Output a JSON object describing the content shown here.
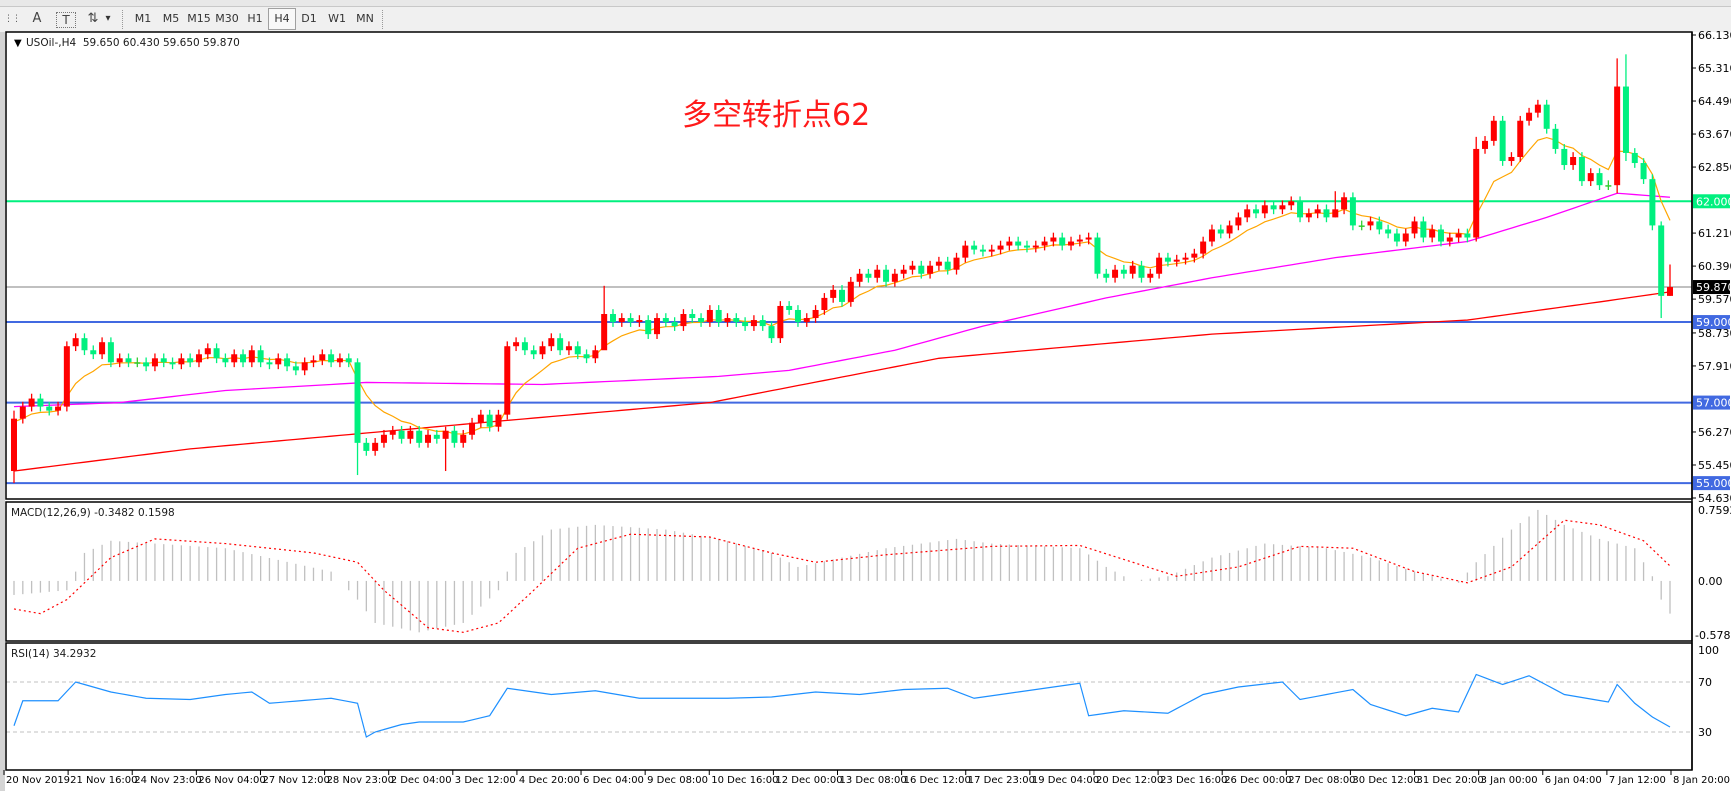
{
  "toolbar": {
    "tools": [
      {
        "name": "grid-period-separator-icon",
        "glyph": "⋮⋮"
      },
      {
        "name": "text-label-icon",
        "glyph": "A"
      },
      {
        "name": "text-box-icon",
        "glyph": "T"
      },
      {
        "name": "arrows-icon",
        "glyph": "⇅"
      }
    ],
    "dropdown_glyph": "▾",
    "timeframes": [
      "M1",
      "M5",
      "M15",
      "M30",
      "H1",
      "H4",
      "D1",
      "W1",
      "MN"
    ],
    "active_timeframe": "H4"
  },
  "chart": {
    "symbol_info": "USOil-,H4  59.650 60.430 59.650 59.870",
    "annotation": "多空转折点62",
    "colors": {
      "bull": "#ff0000",
      "bear": "#00f07f",
      "ma_fast": "#ffa500",
      "ma_mid": "#ff00ff",
      "ma_slow": "#ff0000",
      "support": "#4169e1",
      "resistance": "#00f07f"
    }
  },
  "price_axis": {
    "ticks": [
      "66.130",
      "65.310",
      "64.490",
      "63.670",
      "62.850",
      "61.210",
      "60.390",
      "59.570",
      "58.730",
      "57.910",
      "56.270",
      "55.450",
      "54.630"
    ]
  },
  "hlines": [
    {
      "price": 62.0,
      "label": "62.000",
      "color": "#00f07f"
    },
    {
      "price": 59.0,
      "label": "59.000",
      "color": "#4169e1"
    },
    {
      "price": 57.0,
      "label": "57.000",
      "color": "#4169e1"
    },
    {
      "price": 55.0,
      "label": "55.000",
      "color": "#4169e1"
    }
  ],
  "current_price": {
    "value": 59.87,
    "label": "59.870"
  },
  "macd": {
    "label": "MACD(12,26,9) -0.3482 0.1598",
    "ticks": [
      "0.7592",
      "0.00",
      "-0.5785"
    ]
  },
  "rsi": {
    "label": "RSI(14) 34.2932",
    "ticks": [
      "100",
      "70",
      "30"
    ],
    "levels": [
      70,
      30
    ]
  },
  "x_axis": {
    "labels": [
      "20 Nov 2019",
      "21 Nov 16:00",
      "24 Nov 23:00",
      "26 Nov 04:00",
      "27 Nov 12:00",
      "28 Nov 23:00",
      "2 Dec 04:00",
      "3 Dec 12:00",
      "4 Dec 20:00",
      "6 Dec 04:00",
      "9 Dec 08:00",
      "10 Dec 16:00",
      "12 Dec 00:00",
      "13 Dec 08:00",
      "16 Dec 12:00",
      "17 Dec 23:00",
      "19 Dec 04:00",
      "20 Dec 12:00",
      "23 Dec 16:00",
      "26 Dec 00:00",
      "27 Dec 08:00",
      "30 Dec 12:00",
      "31 Dec 20:00",
      "3 Jan 00:00",
      "6 Jan 04:00",
      "7 Jan 12:00",
      "8 Jan 20:00"
    ]
  },
  "chart_data": {
    "type": "candlestick",
    "symbol": "USOil-",
    "timeframe": "H4",
    "ylim": [
      54.63,
      66.13
    ],
    "first_open": 55.3,
    "closes": [
      56.6,
      56.9,
      57.1,
      56.9,
      56.8,
      56.9,
      58.4,
      58.6,
      58.3,
      58.2,
      58.5,
      58.0,
      58.1,
      58.0,
      58.0,
      57.9,
      58.1,
      58.0,
      57.95,
      58.1,
      58.0,
      58.2,
      58.35,
      58.1,
      58.0,
      58.2,
      58.0,
      58.3,
      58.0,
      57.95,
      58.1,
      57.9,
      57.8,
      58.0,
      58.05,
      58.2,
      58.0,
      58.1,
      58.0,
      56.0,
      55.8,
      56.0,
      56.2,
      56.3,
      56.1,
      56.3,
      56.0,
      56.2,
      56.1,
      56.3,
      56.0,
      56.2,
      56.5,
      56.7,
      56.4,
      56.7,
      58.4,
      58.5,
      58.3,
      58.2,
      58.4,
      58.6,
      58.3,
      58.4,
      58.2,
      58.1,
      58.3,
      59.2,
      59.0,
      59.1,
      59.0,
      59.05,
      58.7,
      59.1,
      59.0,
      58.9,
      59.2,
      59.1,
      59.0,
      59.3,
      59.0,
      59.1,
      59.0,
      58.9,
      59.05,
      58.9,
      58.6,
      59.4,
      59.3,
      59.0,
      59.1,
      59.3,
      59.6,
      59.8,
      59.5,
      60.0,
      60.2,
      60.1,
      60.3,
      60.0,
      60.2,
      60.3,
      60.4,
      60.2,
      60.4,
      60.5,
      60.3,
      60.6,
      60.9,
      60.8,
      60.75,
      60.8,
      60.9,
      61.0,
      60.9,
      60.85,
      60.9,
      61.0,
      61.1,
      60.9,
      61.0,
      61.05,
      61.1,
      60.2,
      60.1,
      60.3,
      60.2,
      60.4,
      60.1,
      60.2,
      60.6,
      60.5,
      60.55,
      60.6,
      60.7,
      61.0,
      61.3,
      61.2,
      61.4,
      61.6,
      61.8,
      61.7,
      61.9,
      61.8,
      61.9,
      62.0,
      61.6,
      61.7,
      61.8,
      61.6,
      61.8,
      62.1,
      61.4,
      61.4,
      61.5,
      61.3,
      61.2,
      61.0,
      61.2,
      61.5,
      61.1,
      61.3,
      61.0,
      61.1,
      61.2,
      61.1,
      63.3,
      63.5,
      64.0,
      63.0,
      63.1,
      64.0,
      64.2,
      64.4,
      63.8,
      63.3,
      62.9,
      63.1,
      62.5,
      62.7,
      62.4,
      62.4,
      64.85,
      63.2,
      62.95,
      62.55,
      61.4,
      59.65,
      59.87
    ],
    "notable_high_low": [
      [
        0,
        56.8,
        55.0
      ],
      [
        39,
        58.1,
        55.2
      ],
      [
        49,
        56.4,
        55.3
      ],
      [
        67,
        59.9,
        58.4
      ],
      [
        150,
        62.25,
        61.6
      ],
      [
        166,
        63.6,
        61.0
      ],
      [
        182,
        65.55,
        62.2
      ],
      [
        183,
        65.65,
        63.0
      ],
      [
        187,
        61.5,
        59.1
      ],
      [
        188,
        60.43,
        59.65
      ]
    ],
    "ma_mid_points": [
      [
        0,
        56.9
      ],
      [
        12,
        57.0
      ],
      [
        24,
        57.3
      ],
      [
        40,
        57.5
      ],
      [
        60,
        57.45
      ],
      [
        80,
        57.65
      ],
      [
        88,
        57.8
      ],
      [
        100,
        58.3
      ],
      [
        110,
        58.9
      ],
      [
        124,
        59.6
      ],
      [
        136,
        60.1
      ],
      [
        150,
        60.6
      ],
      [
        165,
        61.0
      ],
      [
        174,
        61.6
      ],
      [
        182,
        62.2
      ],
      [
        188,
        62.1
      ]
    ],
    "ma_slow_points": [
      [
        0,
        55.3
      ],
      [
        20,
        55.85
      ],
      [
        53,
        56.5
      ],
      [
        79,
        57.0
      ],
      [
        105,
        58.1
      ],
      [
        136,
        58.7
      ],
      [
        165,
        59.05
      ],
      [
        180,
        59.5
      ],
      [
        188,
        59.75
      ]
    ],
    "macd_hist_points": [
      [
        0,
        -0.15
      ],
      [
        6,
        -0.1
      ],
      [
        8,
        0.3
      ],
      [
        11,
        0.43
      ],
      [
        16,
        0.4
      ],
      [
        24,
        0.35
      ],
      [
        36,
        0.1
      ],
      [
        39,
        -0.2
      ],
      [
        41,
        -0.45
      ],
      [
        46,
        -0.55
      ],
      [
        51,
        -0.45
      ],
      [
        55,
        -0.1
      ],
      [
        57,
        0.3
      ],
      [
        61,
        0.55
      ],
      [
        66,
        0.6
      ],
      [
        74,
        0.55
      ],
      [
        80,
        0.45
      ],
      [
        86,
        0.3
      ],
      [
        89,
        0.15
      ],
      [
        94,
        0.25
      ],
      [
        99,
        0.35
      ],
      [
        107,
        0.45
      ],
      [
        111,
        0.4
      ],
      [
        121,
        0.35
      ],
      [
        124,
        0.15
      ],
      [
        127,
        0.0
      ],
      [
        131,
        0.05
      ],
      [
        136,
        0.25
      ],
      [
        142,
        0.4
      ],
      [
        149,
        0.35
      ],
      [
        154,
        0.25
      ],
      [
        159,
        0.1
      ],
      [
        164,
        -0.02
      ],
      [
        166,
        0.2
      ],
      [
        170,
        0.55
      ],
      [
        173,
        0.76
      ],
      [
        176,
        0.6
      ],
      [
        180,
        0.45
      ],
      [
        184,
        0.35
      ],
      [
        186,
        0.05
      ],
      [
        187,
        -0.2
      ],
      [
        188,
        -0.35
      ]
    ],
    "macd_signal_points": [
      [
        0,
        -0.3
      ],
      [
        3,
        -0.35
      ],
      [
        6,
        -0.2
      ],
      [
        11,
        0.25
      ],
      [
        16,
        0.45
      ],
      [
        24,
        0.4
      ],
      [
        34,
        0.3
      ],
      [
        39,
        0.2
      ],
      [
        42,
        -0.1
      ],
      [
        47,
        -0.5
      ],
      [
        51,
        -0.55
      ],
      [
        55,
        -0.45
      ],
      [
        59,
        -0.1
      ],
      [
        64,
        0.35
      ],
      [
        70,
        0.5
      ],
      [
        79,
        0.47
      ],
      [
        86,
        0.3
      ],
      [
        91,
        0.2
      ],
      [
        99,
        0.28
      ],
      [
        111,
        0.37
      ],
      [
        121,
        0.38
      ],
      [
        127,
        0.2
      ],
      [
        132,
        0.05
      ],
      [
        139,
        0.15
      ],
      [
        146,
        0.37
      ],
      [
        152,
        0.35
      ],
      [
        159,
        0.1
      ],
      [
        165,
        -0.02
      ],
      [
        170,
        0.15
      ],
      [
        176,
        0.65
      ],
      [
        180,
        0.6
      ],
      [
        185,
        0.43
      ],
      [
        188,
        0.16
      ]
    ],
    "macd_ylim": [
      -0.643,
      0.845
    ],
    "rsi_points": [
      [
        0,
        35
      ],
      [
        1,
        55
      ],
      [
        5,
        55
      ],
      [
        7,
        70
      ],
      [
        11,
        62
      ],
      [
        15,
        57
      ],
      [
        20,
        56
      ],
      [
        24,
        60
      ],
      [
        27,
        62
      ],
      [
        29,
        53
      ],
      [
        36,
        57
      ],
      [
        39,
        53
      ],
      [
        40,
        26
      ],
      [
        41,
        30
      ],
      [
        44,
        36
      ],
      [
        46,
        38
      ],
      [
        51,
        38
      ],
      [
        54,
        43
      ],
      [
        56,
        65
      ],
      [
        61,
        60
      ],
      [
        66,
        63
      ],
      [
        71,
        57
      ],
      [
        76,
        57
      ],
      [
        81,
        57
      ],
      [
        86,
        58
      ],
      [
        91,
        62
      ],
      [
        96,
        60
      ],
      [
        101,
        64
      ],
      [
        106,
        65
      ],
      [
        109,
        57
      ],
      [
        115,
        63
      ],
      [
        119,
        67
      ],
      [
        121,
        69
      ],
      [
        122,
        43
      ],
      [
        126,
        47
      ],
      [
        131,
        45
      ],
      [
        135,
        60
      ],
      [
        139,
        66
      ],
      [
        144,
        70
      ],
      [
        146,
        56
      ],
      [
        152,
        64
      ],
      [
        154,
        52
      ],
      [
        158,
        43
      ],
      [
        161,
        49
      ],
      [
        164,
        46
      ],
      [
        166,
        76
      ],
      [
        169,
        68
      ],
      [
        172,
        75
      ],
      [
        176,
        60
      ],
      [
        181,
        54
      ],
      [
        182,
        68
      ],
      [
        184,
        53
      ],
      [
        186,
        42
      ],
      [
        188,
        34
      ]
    ],
    "rsi_ylim": [
      0,
      100
    ]
  }
}
